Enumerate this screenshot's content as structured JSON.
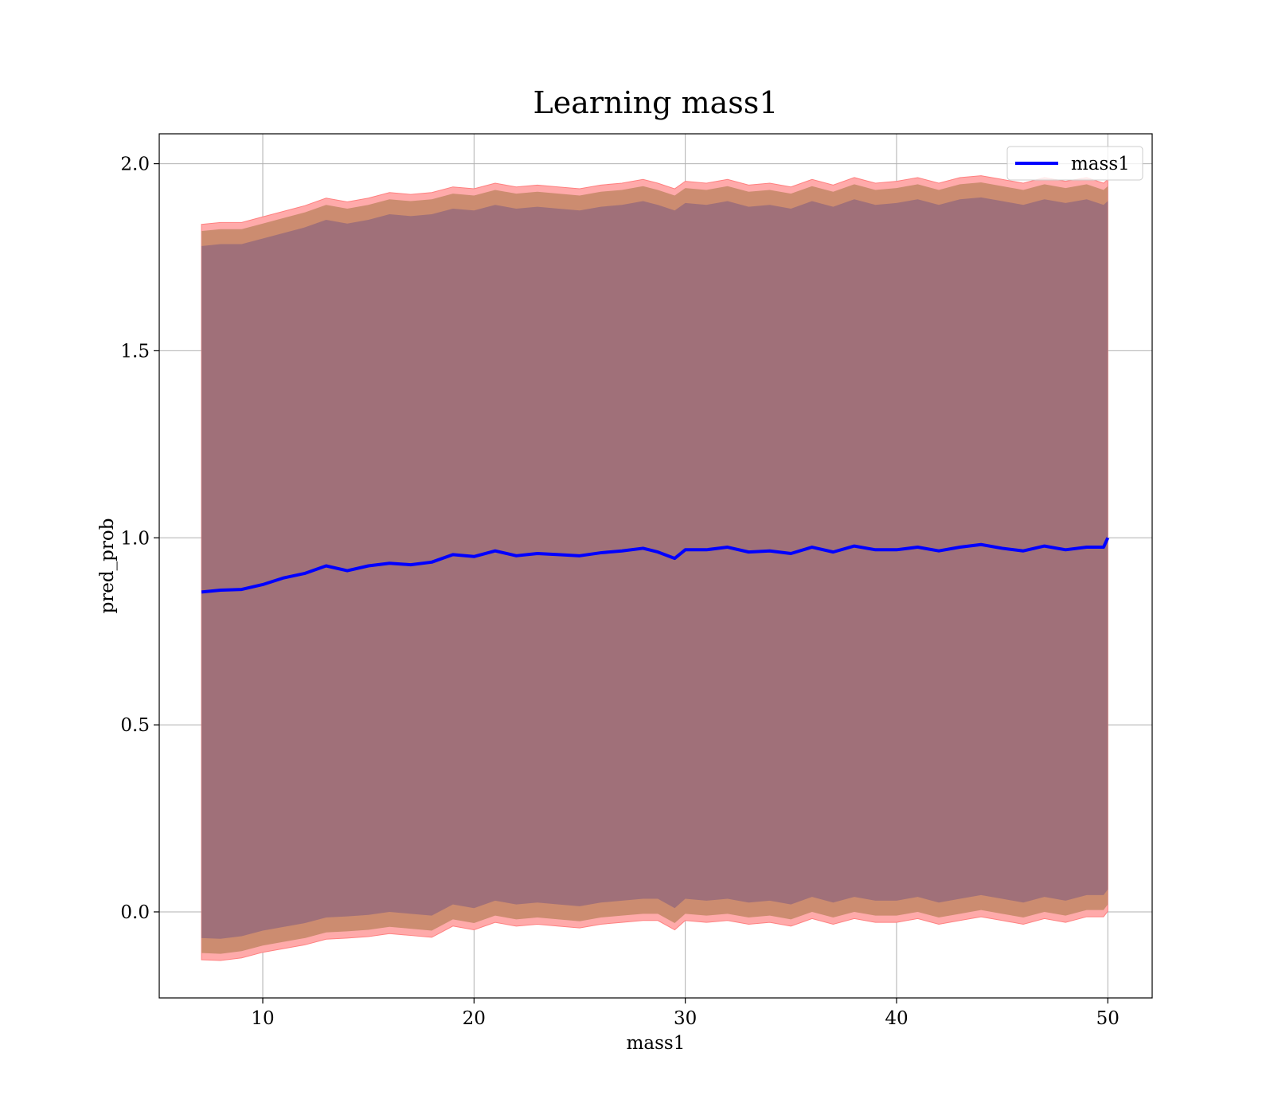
{
  "chart_data": {
    "type": "line",
    "title": "Learning mass1",
    "xlabel": "mass1",
    "ylabel": "pred_prob",
    "xlim": [
      5.1,
      52.1
    ],
    "ylim": [
      -0.23,
      2.08
    ],
    "xticks": [
      10,
      20,
      30,
      40,
      50
    ],
    "yticks": [
      0.0,
      0.5,
      1.0,
      1.5,
      2.0
    ],
    "grid": true,
    "legend": {
      "placement": "top-right",
      "entries": [
        "mass1"
      ]
    },
    "colors": {
      "line": "#0000ff",
      "band_outer": "#ffaaaa",
      "band_outer_edge": "#ff8080",
      "band_mid": "#cc8c70",
      "band_inner": "#a07079",
      "grid": "#b0b0b0"
    },
    "series": [
      {
        "name": "mass1",
        "x": [
          7.1,
          8.0,
          9.0,
          10.0,
          11.0,
          12.0,
          13.0,
          14.0,
          15.0,
          16.0,
          17.0,
          18.0,
          19.0,
          20.0,
          21.0,
          22.0,
          23.0,
          24.0,
          25.0,
          26.0,
          27.0,
          28.0,
          28.7,
          29.5,
          30.0,
          31.0,
          32.0,
          33.0,
          34.0,
          35.0,
          36.0,
          37.0,
          38.0,
          39.0,
          40.0,
          41.0,
          42.0,
          43.0,
          44.0,
          45.0,
          46.0,
          47.0,
          48.0,
          49.0,
          49.8,
          50.0
        ],
        "y": [
          0.855,
          0.86,
          0.862,
          0.875,
          0.893,
          0.905,
          0.925,
          0.912,
          0.925,
          0.932,
          0.928,
          0.935,
          0.955,
          0.95,
          0.965,
          0.952,
          0.958,
          0.955,
          0.952,
          0.96,
          0.965,
          0.972,
          0.962,
          0.945,
          0.968,
          0.968,
          0.975,
          0.962,
          0.965,
          0.958,
          0.975,
          0.962,
          0.978,
          0.968,
          0.968,
          0.975,
          0.965,
          0.975,
          0.982,
          0.972,
          0.965,
          0.978,
          0.968,
          0.975,
          0.975,
          1.0
        ],
        "lower": [
          -0.07,
          -0.072,
          -0.065,
          -0.05,
          -0.04,
          -0.03,
          -0.015,
          -0.012,
          -0.008,
          0.0,
          -0.005,
          -0.01,
          0.02,
          0.01,
          0.03,
          0.02,
          0.025,
          0.02,
          0.015,
          0.025,
          0.03,
          0.035,
          0.035,
          0.01,
          0.035,
          0.03,
          0.035,
          0.025,
          0.03,
          0.02,
          0.04,
          0.025,
          0.04,
          0.03,
          0.03,
          0.04,
          0.025,
          0.035,
          0.045,
          0.035,
          0.025,
          0.04,
          0.03,
          0.045,
          0.045,
          0.06
        ],
        "upper": [
          1.78,
          1.785,
          1.785,
          1.8,
          1.815,
          1.83,
          1.85,
          1.84,
          1.85,
          1.865,
          1.86,
          1.865,
          1.88,
          1.875,
          1.89,
          1.88,
          1.885,
          1.88,
          1.875,
          1.885,
          1.89,
          1.9,
          1.89,
          1.875,
          1.895,
          1.89,
          1.9,
          1.885,
          1.89,
          1.88,
          1.9,
          1.885,
          1.905,
          1.89,
          1.895,
          1.905,
          1.89,
          1.905,
          1.91,
          1.9,
          1.89,
          1.905,
          1.895,
          1.905,
          1.89,
          1.9
        ]
      }
    ]
  }
}
